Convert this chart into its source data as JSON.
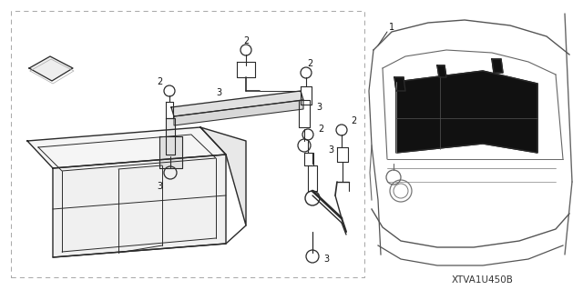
{
  "background_color": "#ffffff",
  "figure_width": 6.4,
  "figure_height": 3.19,
  "dpi": 100,
  "watermark": "XTVA1U450B",
  "label_fontsize": 7.0,
  "watermark_fontsize": 7.5
}
